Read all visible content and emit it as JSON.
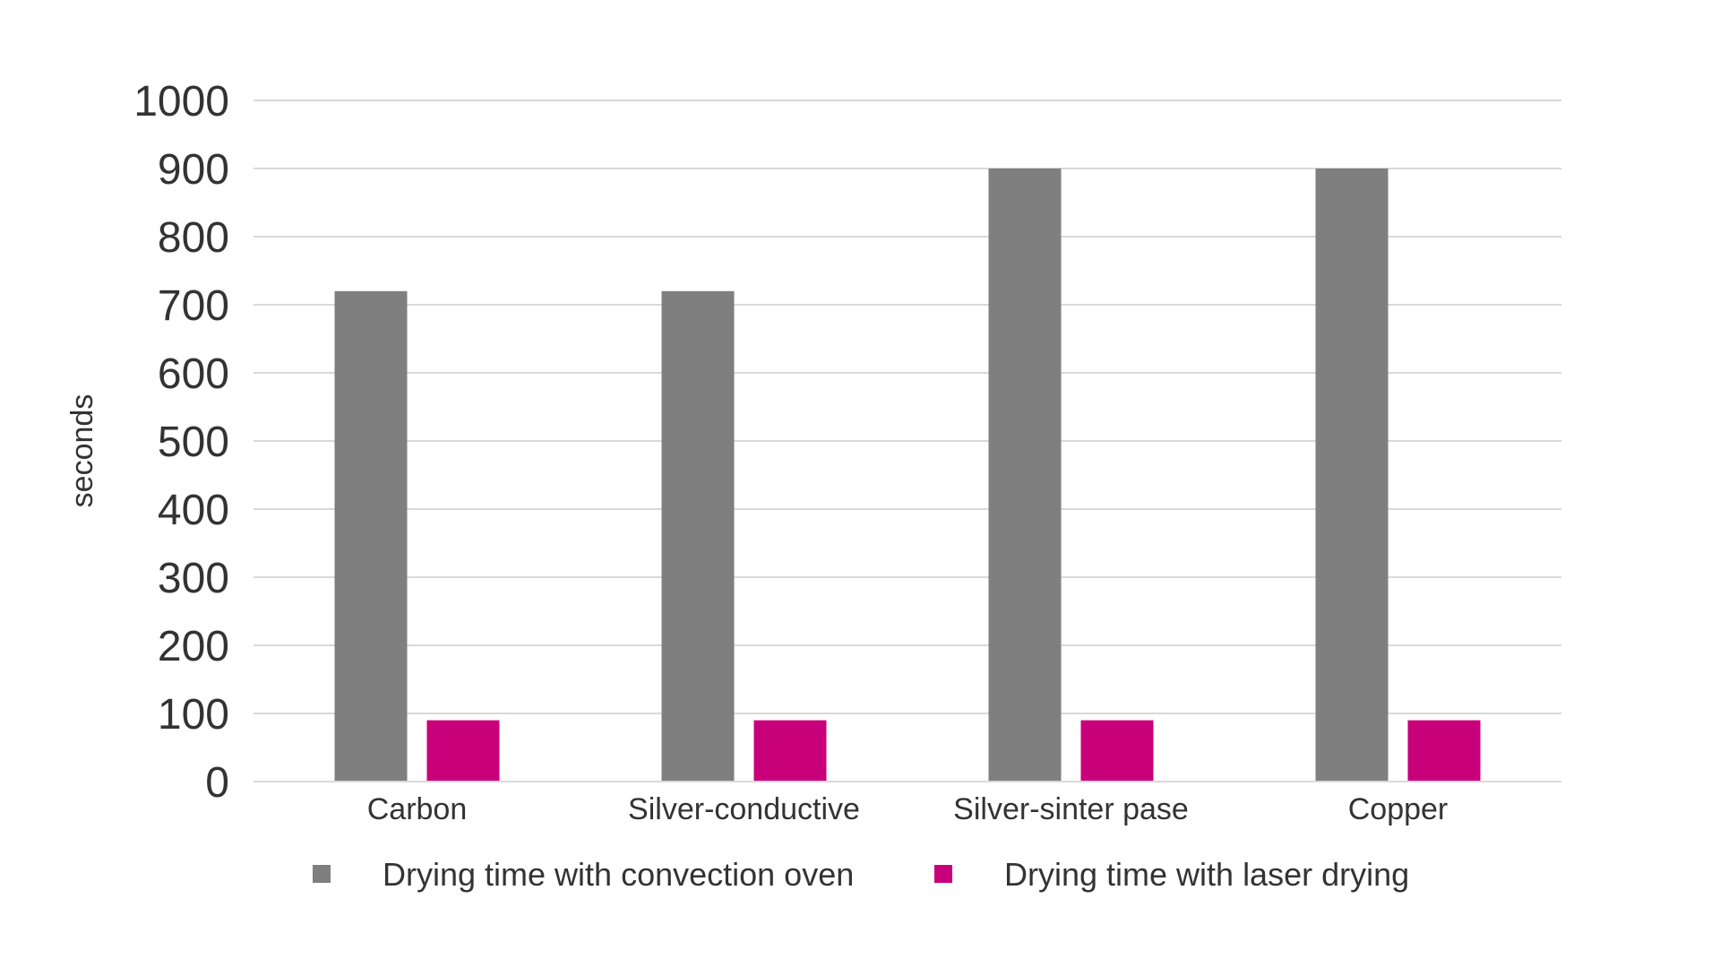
{
  "chart_data": {
    "type": "bar",
    "title": "",
    "xlabel": "",
    "ylabel": "seconds",
    "ylim": [
      0,
      1000
    ],
    "yticks": [
      0,
      100,
      200,
      300,
      400,
      500,
      600,
      700,
      800,
      900,
      1000
    ],
    "grid": true,
    "legend_position": "bottom",
    "categories": [
      "Carbon",
      "Silver-conductive",
      "Silver-sinter pase",
      "Copper"
    ],
    "series": [
      {
        "name": "Drying time with convection oven",
        "color": "#7f7f7f",
        "values": [
          720,
          720,
          900,
          900
        ]
      },
      {
        "name": "Drying time with laser drying",
        "color": "#c8007a",
        "values": [
          90,
          90,
          90,
          90
        ]
      }
    ]
  }
}
